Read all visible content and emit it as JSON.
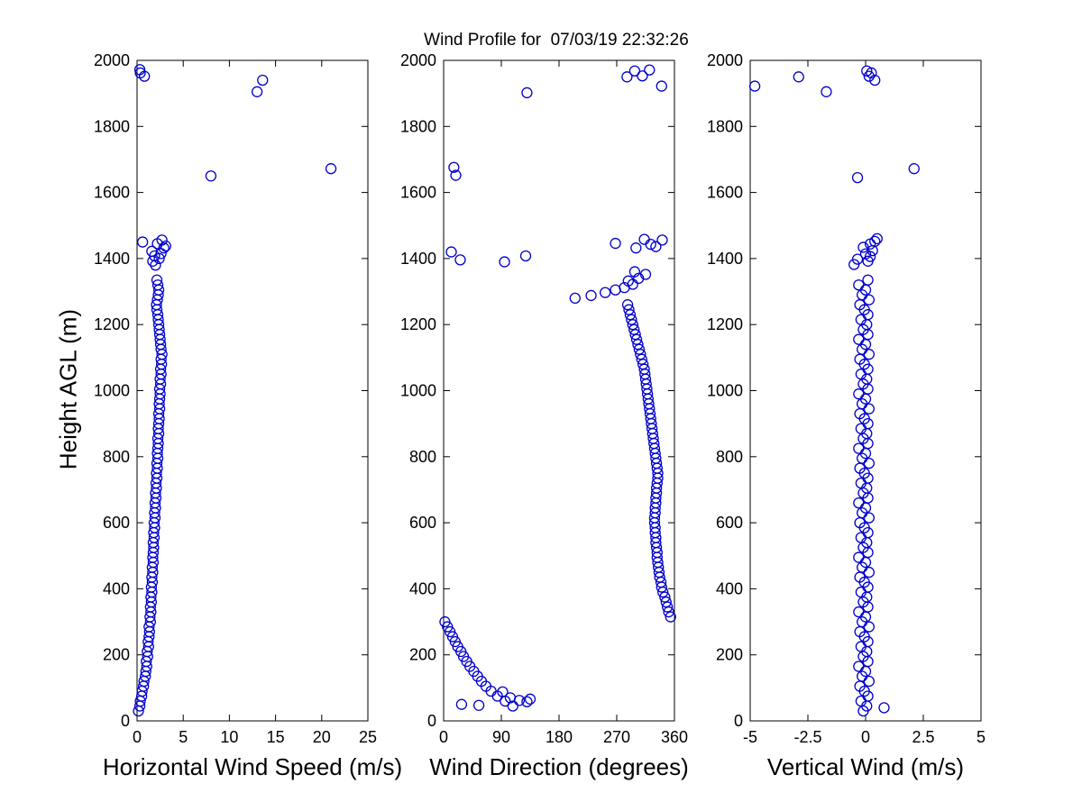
{
  "title": "Wind Profile for  07/03/19 22:32:26",
  "ylabel": "Height AGL (m)",
  "ylim": [
    0,
    2000
  ],
  "yticks": [
    0,
    200,
    400,
    600,
    800,
    1000,
    1200,
    1400,
    1600,
    1800,
    2000
  ],
  "marker_color": "#0000CC",
  "axis_color": "#000000",
  "background_color": "#ffffff",
  "chart_data": [
    {
      "type": "scatter",
      "xlabel": "Horizontal Wind Speed (m/s)",
      "xlim": [
        0,
        25
      ],
      "xticks": [
        0,
        5,
        10,
        15,
        20,
        25
      ],
      "ylim": [
        0,
        2000
      ],
      "points": [
        [
          0.15,
          30
        ],
        [
          0.3,
          45
        ],
        [
          0.35,
          60
        ],
        [
          0.5,
          75
        ],
        [
          0.55,
          90
        ],
        [
          0.7,
          105
        ],
        [
          0.75,
          120
        ],
        [
          0.9,
          135
        ],
        [
          0.95,
          150
        ],
        [
          1.05,
          165
        ],
        [
          1.0,
          180
        ],
        [
          1.15,
          195
        ],
        [
          1.1,
          210
        ],
        [
          1.25,
          225
        ],
        [
          1.2,
          240
        ],
        [
          1.3,
          255
        ],
        [
          1.35,
          270
        ],
        [
          1.3,
          285
        ],
        [
          1.45,
          300
        ],
        [
          1.4,
          315
        ],
        [
          1.5,
          330
        ],
        [
          1.45,
          345
        ],
        [
          1.55,
          360
        ],
        [
          1.5,
          375
        ],
        [
          1.6,
          390
        ],
        [
          1.55,
          405
        ],
        [
          1.65,
          420
        ],
        [
          1.6,
          435
        ],
        [
          1.7,
          450
        ],
        [
          1.65,
          465
        ],
        [
          1.75,
          480
        ],
        [
          1.7,
          495
        ],
        [
          1.75,
          510
        ],
        [
          1.8,
          525
        ],
        [
          1.75,
          540
        ],
        [
          1.85,
          555
        ],
        [
          1.8,
          570
        ],
        [
          1.9,
          585
        ],
        [
          1.85,
          600
        ],
        [
          1.95,
          615
        ],
        [
          1.9,
          630
        ],
        [
          2.0,
          645
        ],
        [
          1.95,
          660
        ],
        [
          2.05,
          675
        ],
        [
          2.0,
          690
        ],
        [
          2.1,
          705
        ],
        [
          2.05,
          720
        ],
        [
          2.15,
          735
        ],
        [
          2.1,
          750
        ],
        [
          2.2,
          765
        ],
        [
          2.15,
          780
        ],
        [
          2.25,
          795
        ],
        [
          2.2,
          810
        ],
        [
          2.25,
          825
        ],
        [
          2.3,
          840
        ],
        [
          2.25,
          855
        ],
        [
          2.35,
          870
        ],
        [
          2.3,
          885
        ],
        [
          2.35,
          900
        ],
        [
          2.4,
          915
        ],
        [
          2.35,
          930
        ],
        [
          2.45,
          945
        ],
        [
          2.4,
          960
        ],
        [
          2.45,
          975
        ],
        [
          2.5,
          990
        ],
        [
          2.45,
          1005
        ],
        [
          2.55,
          1020
        ],
        [
          2.5,
          1035
        ],
        [
          2.6,
          1050
        ],
        [
          2.55,
          1065
        ],
        [
          2.65,
          1080
        ],
        [
          2.6,
          1095
        ],
        [
          2.7,
          1110
        ],
        [
          2.6,
          1125
        ],
        [
          2.55,
          1140
        ],
        [
          2.5,
          1155
        ],
        [
          2.45,
          1170
        ],
        [
          2.4,
          1185
        ],
        [
          2.35,
          1200
        ],
        [
          2.3,
          1215
        ],
        [
          2.25,
          1230
        ],
        [
          2.15,
          1245
        ],
        [
          2.1,
          1260
        ],
        [
          2.2,
          1275
        ],
        [
          2.3,
          1290
        ],
        [
          2.35,
          1305
        ],
        [
          2.25,
          1320
        ],
        [
          2.15,
          1335
        ],
        [
          2.0,
          1380
        ],
        [
          1.7,
          1392
        ],
        [
          2.4,
          1400
        ],
        [
          1.9,
          1408
        ],
        [
          2.6,
          1415
        ],
        [
          1.6,
          1422
        ],
        [
          2.9,
          1432
        ],
        [
          3.1,
          1438
        ],
        [
          2.2,
          1445
        ],
        [
          0.6,
          1450
        ],
        [
          2.7,
          1456
        ],
        [
          8.0,
          1650
        ],
        [
          21.0,
          1672
        ],
        [
          13.0,
          1905
        ],
        [
          13.6,
          1940
        ],
        [
          0.8,
          1952
        ],
        [
          0.35,
          1962
        ],
        [
          0.3,
          1972
        ]
      ]
    },
    {
      "type": "scatter",
      "xlabel": "Wind Direction (degrees)",
      "xlim": [
        0,
        360
      ],
      "xticks": [
        0,
        90,
        180,
        270,
        360
      ],
      "ylim": [
        0,
        2000
      ],
      "points": [
        [
          2,
          300
        ],
        [
          6,
          285
        ],
        [
          10,
          270
        ],
        [
          14,
          255
        ],
        [
          18,
          240
        ],
        [
          22,
          225
        ],
        [
          27,
          210
        ],
        [
          31,
          195
        ],
        [
          36,
          180
        ],
        [
          41,
          165
        ],
        [
          47,
          150
        ],
        [
          53,
          135
        ],
        [
          59,
          120
        ],
        [
          66,
          105
        ],
        [
          74,
          90
        ],
        [
          84,
          75
        ],
        [
          96,
          60
        ],
        [
          108,
          45
        ],
        [
          28,
          50
        ],
        [
          55,
          47
        ],
        [
          92,
          88
        ],
        [
          104,
          70
        ],
        [
          118,
          62
        ],
        [
          130,
          58
        ],
        [
          135,
          66
        ],
        [
          354,
          315
        ],
        [
          351,
          330
        ],
        [
          349,
          345
        ],
        [
          347,
          360
        ],
        [
          345,
          375
        ],
        [
          342,
          390
        ],
        [
          340,
          405
        ],
        [
          339,
          420
        ],
        [
          337,
          435
        ],
        [
          336,
          450
        ],
        [
          335,
          465
        ],
        [
          334,
          480
        ],
        [
          333,
          495
        ],
        [
          333,
          510
        ],
        [
          332,
          525
        ],
        [
          331,
          540
        ],
        [
          331,
          555
        ],
        [
          330,
          570
        ],
        [
          330,
          585
        ],
        [
          329,
          600
        ],
        [
          329,
          615
        ],
        [
          330,
          630
        ],
        [
          330,
          645
        ],
        [
          331,
          660
        ],
        [
          331,
          675
        ],
        [
          332,
          690
        ],
        [
          332,
          705
        ],
        [
          333,
          720
        ],
        [
          334,
          735
        ],
        [
          334,
          750
        ],
        [
          333,
          765
        ],
        [
          332,
          780
        ],
        [
          331,
          795
        ],
        [
          330,
          810
        ],
        [
          329,
          825
        ],
        [
          328,
          840
        ],
        [
          327,
          855
        ],
        [
          326,
          870
        ],
        [
          325,
          885
        ],
        [
          324,
          900
        ],
        [
          323,
          915
        ],
        [
          322,
          930
        ],
        [
          321,
          945
        ],
        [
          320,
          960
        ],
        [
          319,
          975
        ],
        [
          318,
          990
        ],
        [
          317,
          1005
        ],
        [
          316,
          1020
        ],
        [
          315,
          1035
        ],
        [
          314,
          1050
        ],
        [
          313,
          1065
        ],
        [
          311,
          1080
        ],
        [
          309,
          1095
        ],
        [
          307,
          1110
        ],
        [
          305,
          1125
        ],
        [
          303,
          1140
        ],
        [
          301,
          1155
        ],
        [
          299,
          1170
        ],
        [
          297,
          1185
        ],
        [
          295,
          1200
        ],
        [
          293,
          1215
        ],
        [
          291,
          1230
        ],
        [
          289,
          1245
        ],
        [
          287,
          1260
        ],
        [
          205,
          1280
        ],
        [
          230,
          1288
        ],
        [
          252,
          1297
        ],
        [
          268,
          1305
        ],
        [
          282,
          1312
        ],
        [
          295,
          1322
        ],
        [
          288,
          1332
        ],
        [
          304,
          1340
        ],
        [
          315,
          1352
        ],
        [
          298,
          1360
        ],
        [
          12,
          1420
        ],
        [
          26,
          1396
        ],
        [
          95,
          1390
        ],
        [
          128,
          1408
        ],
        [
          268,
          1446
        ],
        [
          300,
          1432
        ],
        [
          313,
          1458
        ],
        [
          323,
          1443
        ],
        [
          331,
          1436
        ],
        [
          341,
          1456
        ],
        [
          16,
          1676
        ],
        [
          19,
          1652
        ],
        [
          130,
          1902
        ],
        [
          286,
          1950
        ],
        [
          298,
          1968
        ],
        [
          310,
          1953
        ],
        [
          321,
          1971
        ],
        [
          340,
          1922
        ]
      ]
    },
    {
      "type": "scatter",
      "xlabel": "Vertical Wind (m/s)",
      "xlim": [
        -5,
        5
      ],
      "xticks": [
        -5,
        -2.5,
        0,
        2.5,
        5
      ],
      "ylim": [
        0,
        2000
      ],
      "points": [
        [
          -0.1,
          30
        ],
        [
          0.05,
          45
        ],
        [
          -0.2,
          60
        ],
        [
          0.1,
          75
        ],
        [
          -0.05,
          90
        ],
        [
          -0.25,
          105
        ],
        [
          0.15,
          120
        ],
        [
          -0.15,
          135
        ],
        [
          0.0,
          150
        ],
        [
          -0.3,
          165
        ],
        [
          0.1,
          180
        ],
        [
          -0.1,
          195
        ],
        [
          0.05,
          210
        ],
        [
          -0.2,
          225
        ],
        [
          0.1,
          240
        ],
        [
          -0.05,
          255
        ],
        [
          -0.25,
          270
        ],
        [
          0.15,
          285
        ],
        [
          -0.15,
          300
        ],
        [
          0.0,
          315
        ],
        [
          -0.3,
          330
        ],
        [
          0.1,
          345
        ],
        [
          -0.1,
          360
        ],
        [
          0.05,
          375
        ],
        [
          -0.2,
          390
        ],
        [
          0.1,
          405
        ],
        [
          -0.05,
          420
        ],
        [
          -0.25,
          435
        ],
        [
          0.15,
          450
        ],
        [
          -0.15,
          465
        ],
        [
          0.0,
          480
        ],
        [
          -0.3,
          495
        ],
        [
          0.1,
          510
        ],
        [
          -0.1,
          525
        ],
        [
          0.05,
          540
        ],
        [
          -0.2,
          555
        ],
        [
          0.1,
          570
        ],
        [
          -0.05,
          585
        ],
        [
          -0.25,
          600
        ],
        [
          0.15,
          615
        ],
        [
          -0.15,
          630
        ],
        [
          0.0,
          645
        ],
        [
          -0.3,
          660
        ],
        [
          0.1,
          675
        ],
        [
          -0.1,
          690
        ],
        [
          0.05,
          705
        ],
        [
          -0.2,
          720
        ],
        [
          0.1,
          735
        ],
        [
          -0.05,
          750
        ],
        [
          -0.25,
          765
        ],
        [
          0.15,
          780
        ],
        [
          -0.15,
          795
        ],
        [
          0.0,
          810
        ],
        [
          -0.3,
          825
        ],
        [
          0.1,
          840
        ],
        [
          -0.1,
          855
        ],
        [
          0.05,
          870
        ],
        [
          -0.2,
          885
        ],
        [
          0.1,
          900
        ],
        [
          -0.05,
          915
        ],
        [
          -0.25,
          930
        ],
        [
          0.15,
          945
        ],
        [
          -0.15,
          960
        ],
        [
          0.0,
          975
        ],
        [
          -0.3,
          990
        ],
        [
          0.1,
          1005
        ],
        [
          -0.1,
          1020
        ],
        [
          0.05,
          1035
        ],
        [
          -0.2,
          1050
        ],
        [
          0.1,
          1065
        ],
        [
          -0.05,
          1080
        ],
        [
          -0.25,
          1095
        ],
        [
          0.15,
          1110
        ],
        [
          -0.15,
          1125
        ],
        [
          0.0,
          1140
        ],
        [
          -0.3,
          1155
        ],
        [
          0.1,
          1170
        ],
        [
          -0.1,
          1185
        ],
        [
          0.05,
          1200
        ],
        [
          -0.2,
          1215
        ],
        [
          0.1,
          1230
        ],
        [
          -0.05,
          1245
        ],
        [
          -0.25,
          1260
        ],
        [
          0.15,
          1275
        ],
        [
          -0.15,
          1290
        ],
        [
          0.0,
          1305
        ],
        [
          -0.3,
          1320
        ],
        [
          0.1,
          1335
        ],
        [
          0.8,
          40
        ],
        [
          -0.5,
          1382
        ],
        [
          0.1,
          1392
        ],
        [
          -0.35,
          1398
        ],
        [
          0.2,
          1406
        ],
        [
          0.0,
          1414
        ],
        [
          0.3,
          1424
        ],
        [
          -0.1,
          1434
        ],
        [
          0.2,
          1444
        ],
        [
          0.4,
          1452
        ],
        [
          0.5,
          1460
        ],
        [
          -0.35,
          1645
        ],
        [
          2.1,
          1672
        ],
        [
          -1.7,
          1905
        ],
        [
          -4.8,
          1922
        ],
        [
          0.4,
          1940
        ],
        [
          -2.9,
          1950
        ],
        [
          0.15,
          1952
        ],
        [
          0.25,
          1962
        ],
        [
          0.05,
          1968
        ]
      ]
    }
  ]
}
